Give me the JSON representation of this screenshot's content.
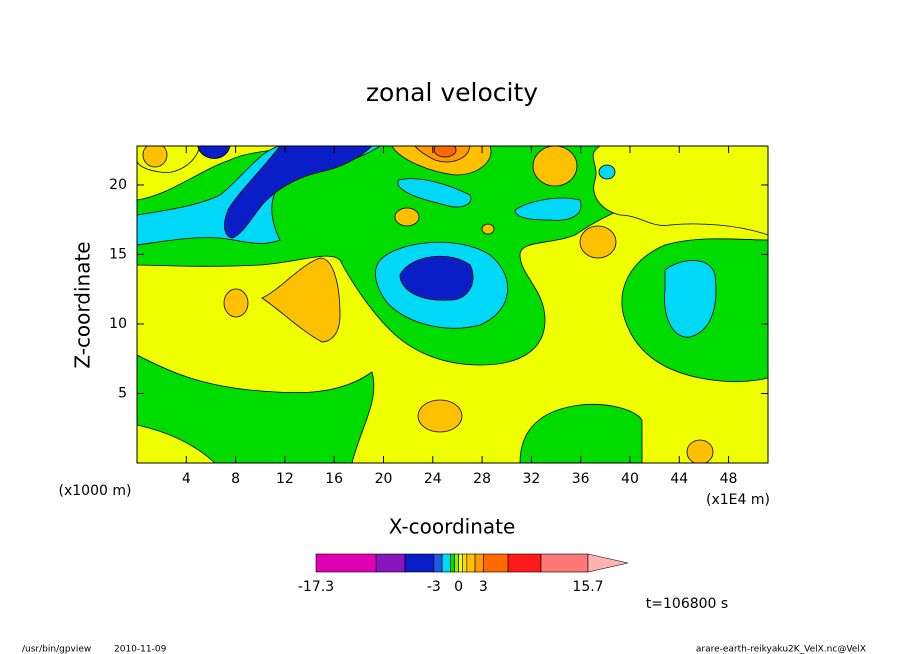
{
  "chart_data": {
    "type": "contour",
    "title": "zonal velocity",
    "xlabel": "X-coordinate",
    "ylabel": "Z-coordinate",
    "x_unit_label": "(x1E4 m)",
    "y_unit_label": "(x1000 m)",
    "xlim": [
      0,
      51.2
    ],
    "ylim": [
      0,
      22.8
    ],
    "xticks": [
      4,
      8,
      12,
      16,
      20,
      24,
      28,
      32,
      36,
      40,
      44,
      48
    ],
    "yticks": [
      5,
      10,
      15,
      20
    ],
    "colorbar": {
      "levels": [
        -17.3,
        -10,
        -6.5,
        -3,
        -2,
        -1,
        -0.5,
        0,
        0.5,
        1,
        2,
        3,
        6,
        10,
        15.7
      ],
      "colors": [
        "#e000b4",
        "#8a14be",
        "#0a1ec8",
        "#1e5ae6",
        "#00d8f8",
        "#00dc00",
        "#8cf000",
        "#f0ff00",
        "#ffdc00",
        "#ffc000",
        "#ff9a00",
        "#ff6a00",
        "#ff1a1a",
        "#ff7878",
        "#ffb4b4"
      ],
      "ticks": [
        -17.3,
        -3,
        0,
        3,
        15.7
      ]
    },
    "time_label": "t=106800 s",
    "footer_program": "/usr/bin/gpview",
    "footer_date": "2010-11-09",
    "footer_file": "arare-earth-reikyaku2K_VelX.nc@VelX"
  }
}
